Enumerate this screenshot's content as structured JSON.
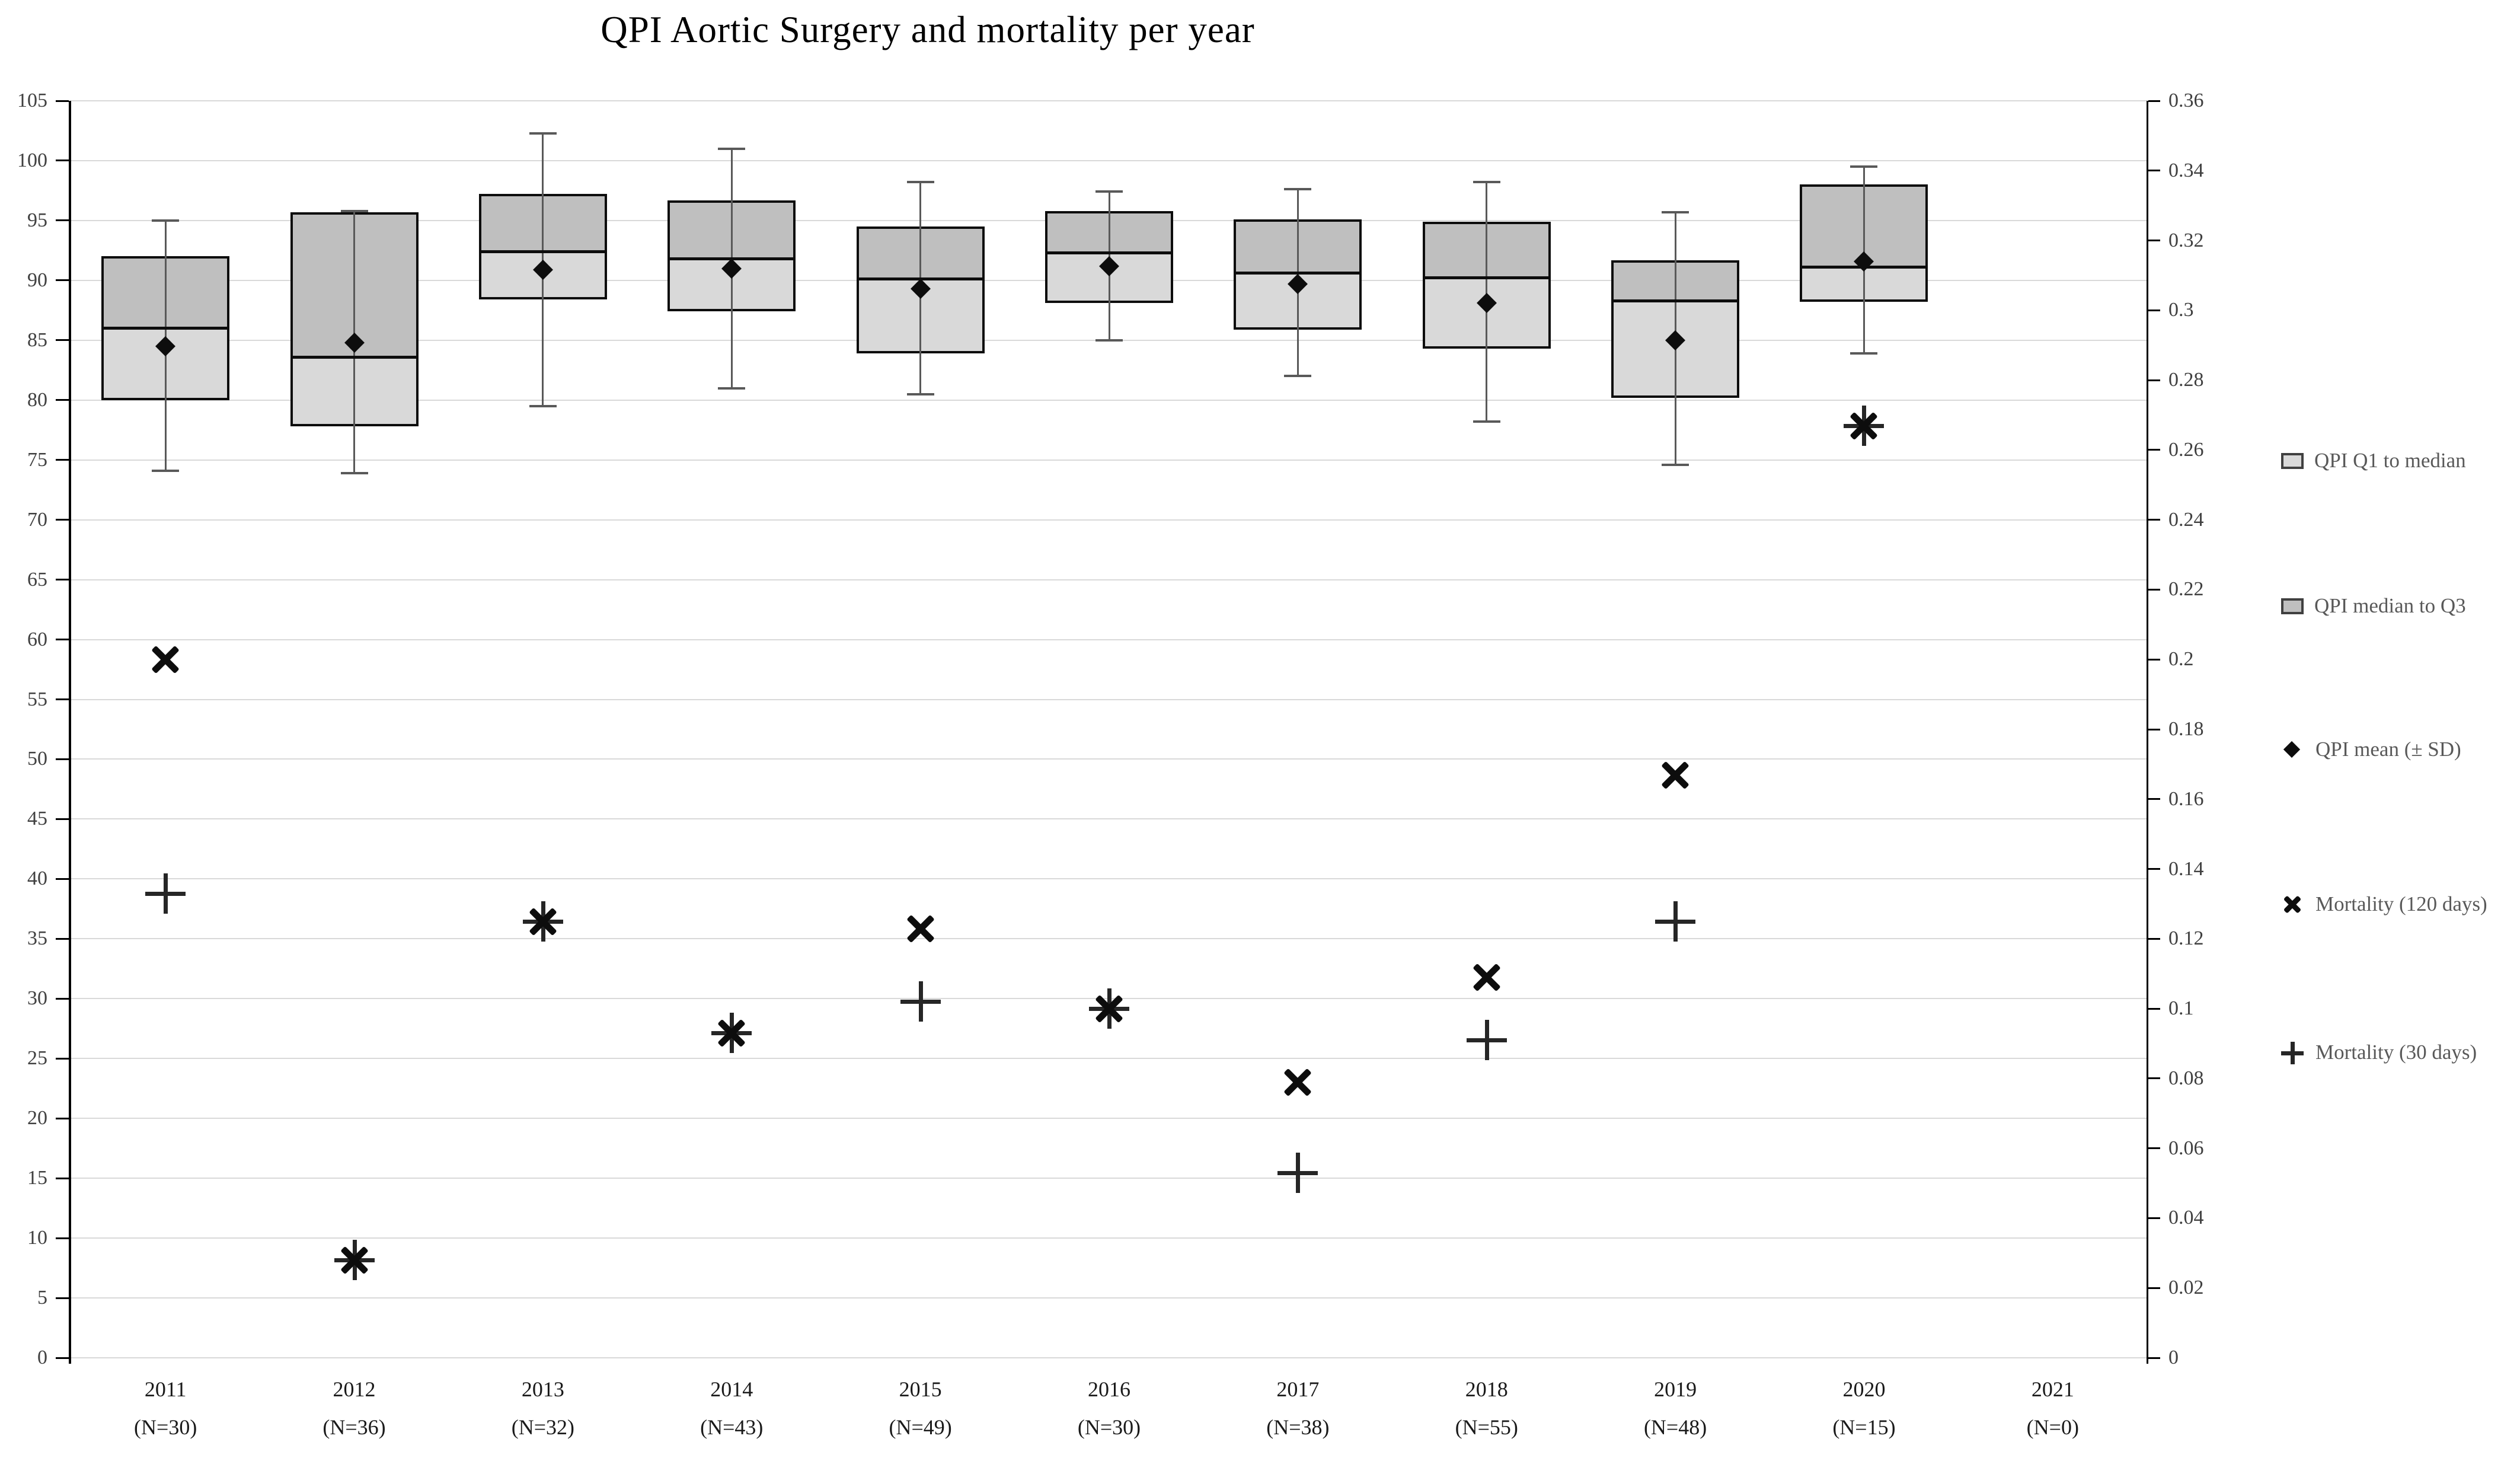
{
  "title": "QPI Aortic Surgery and mortality per year",
  "left_axis": {
    "min": 0,
    "max": 105,
    "step": 5
  },
  "right_axis": {
    "min": 0,
    "max": 0.36,
    "step": 0.02
  },
  "legend": [
    {
      "glyph": "box-light",
      "label": "QPI Q1 to median"
    },
    {
      "glyph": "box-dark",
      "label": "QPI median to Q3"
    },
    {
      "glyph": "diamond",
      "label": "QPI mean (± SD)"
    },
    {
      "glyph": "x",
      "label": "Mortality (120 days)"
    },
    {
      "glyph": "plus",
      "label": "Mortality (30 days)"
    }
  ],
  "colors": {
    "box_light": "#d9d9d9",
    "box_dark": "#bfbfbf",
    "box_border": "#0d0d0d",
    "whisker": "#595959",
    "gridline": "#d9d9d9",
    "axis": "#000000",
    "marker_x": "#0d0d0d",
    "marker_plus": "#262626",
    "legend_text": "#595959",
    "tick_text": "#404040",
    "title_text": "#000000"
  },
  "chart_data": {
    "type": "box+scatter",
    "title": "QPI Aortic Surgery and mortality per year",
    "grid": "horizontal",
    "legend_position": "right",
    "left_axis_label_values": [
      0,
      5,
      10,
      15,
      20,
      25,
      30,
      35,
      40,
      45,
      50,
      55,
      60,
      65,
      70,
      75,
      80,
      85,
      90,
      95,
      100,
      105
    ],
    "right_axis_label_values": [
      0,
      0.02,
      0.04,
      0.06,
      0.08,
      0.1,
      0.12,
      0.14,
      0.16,
      0.18,
      0.2,
      0.22,
      0.24,
      0.26,
      0.28,
      0.3,
      0.32,
      0.34,
      0.36
    ],
    "categories": [
      "2011",
      "2012",
      "2013",
      "2014",
      "2015",
      "2016",
      "2017",
      "2018",
      "2019",
      "2020",
      "2021"
    ],
    "n_labels": [
      "(N=30)",
      "(N=36)",
      "(N=32)",
      "(N=43)",
      "(N=49)",
      "(N=30)",
      "(N=38)",
      "(N=55)",
      "(N=48)",
      "(N=15)",
      "(N=0)"
    ],
    "boxes": [
      {
        "year": "2011",
        "n": 30,
        "whisker_low": 74.1,
        "q1": 80.0,
        "median": 86.0,
        "q3": 92.0,
        "whisker_high": 95.0,
        "mean": 84.5
      },
      {
        "year": "2012",
        "n": 36,
        "whisker_low": 73.9,
        "q1": 77.8,
        "median": 83.6,
        "q3": 95.7,
        "whisker_high": 95.8,
        "mean": 84.8
      },
      {
        "year": "2013",
        "n": 32,
        "whisker_low": 79.5,
        "q1": 88.4,
        "median": 92.4,
        "q3": 97.2,
        "whisker_high": 102.3,
        "mean": 90.9
      },
      {
        "year": "2014",
        "n": 43,
        "whisker_low": 81.0,
        "q1": 87.4,
        "median": 91.8,
        "q3": 96.7,
        "whisker_high": 101.0,
        "mean": 91.0
      },
      {
        "year": "2015",
        "n": 49,
        "whisker_low": 80.5,
        "q1": 83.9,
        "median": 90.1,
        "q3": 94.5,
        "whisker_high": 98.2,
        "mean": 89.3
      },
      {
        "year": "2016",
        "n": 30,
        "whisker_low": 85.0,
        "q1": 88.1,
        "median": 92.3,
        "q3": 95.8,
        "whisker_high": 97.4,
        "mean": 91.2
      },
      {
        "year": "2017",
        "n": 38,
        "whisker_low": 82.0,
        "q1": 85.9,
        "median": 90.6,
        "q3": 95.1,
        "whisker_high": 97.6,
        "mean": 89.7
      },
      {
        "year": "2018",
        "n": 55,
        "whisker_low": 78.2,
        "q1": 84.3,
        "median": 90.2,
        "q3": 94.9,
        "whisker_high": 98.2,
        "mean": 88.1
      },
      {
        "year": "2019",
        "n": 48,
        "whisker_low": 74.6,
        "q1": 80.2,
        "median": 88.3,
        "q3": 91.7,
        "whisker_high": 95.7,
        "mean": 85.0
      },
      {
        "year": "2020",
        "n": 15,
        "whisker_low": 83.9,
        "q1": 88.2,
        "median": 91.1,
        "q3": 98.0,
        "whisker_high": 99.5,
        "mean": 91.6
      },
      {
        "year": "2021",
        "n": 0,
        "whisker_low": null,
        "q1": null,
        "median": null,
        "q3": null,
        "whisker_high": null,
        "mean": null
      }
    ],
    "series": [
      {
        "name": "Mortality (120 days)",
        "marker": "x",
        "axis": "right",
        "values": [
          0.2,
          0.028,
          0.125,
          0.093,
          0.123,
          0.1,
          0.079,
          0.109,
          0.167,
          0.267,
          null
        ]
      },
      {
        "name": "Mortality (30 days)",
        "marker": "plus",
        "axis": "right",
        "values": [
          0.133,
          0.028,
          0.125,
          0.093,
          0.102,
          0.1,
          0.053,
          0.091,
          0.125,
          0.267,
          null
        ]
      }
    ]
  }
}
